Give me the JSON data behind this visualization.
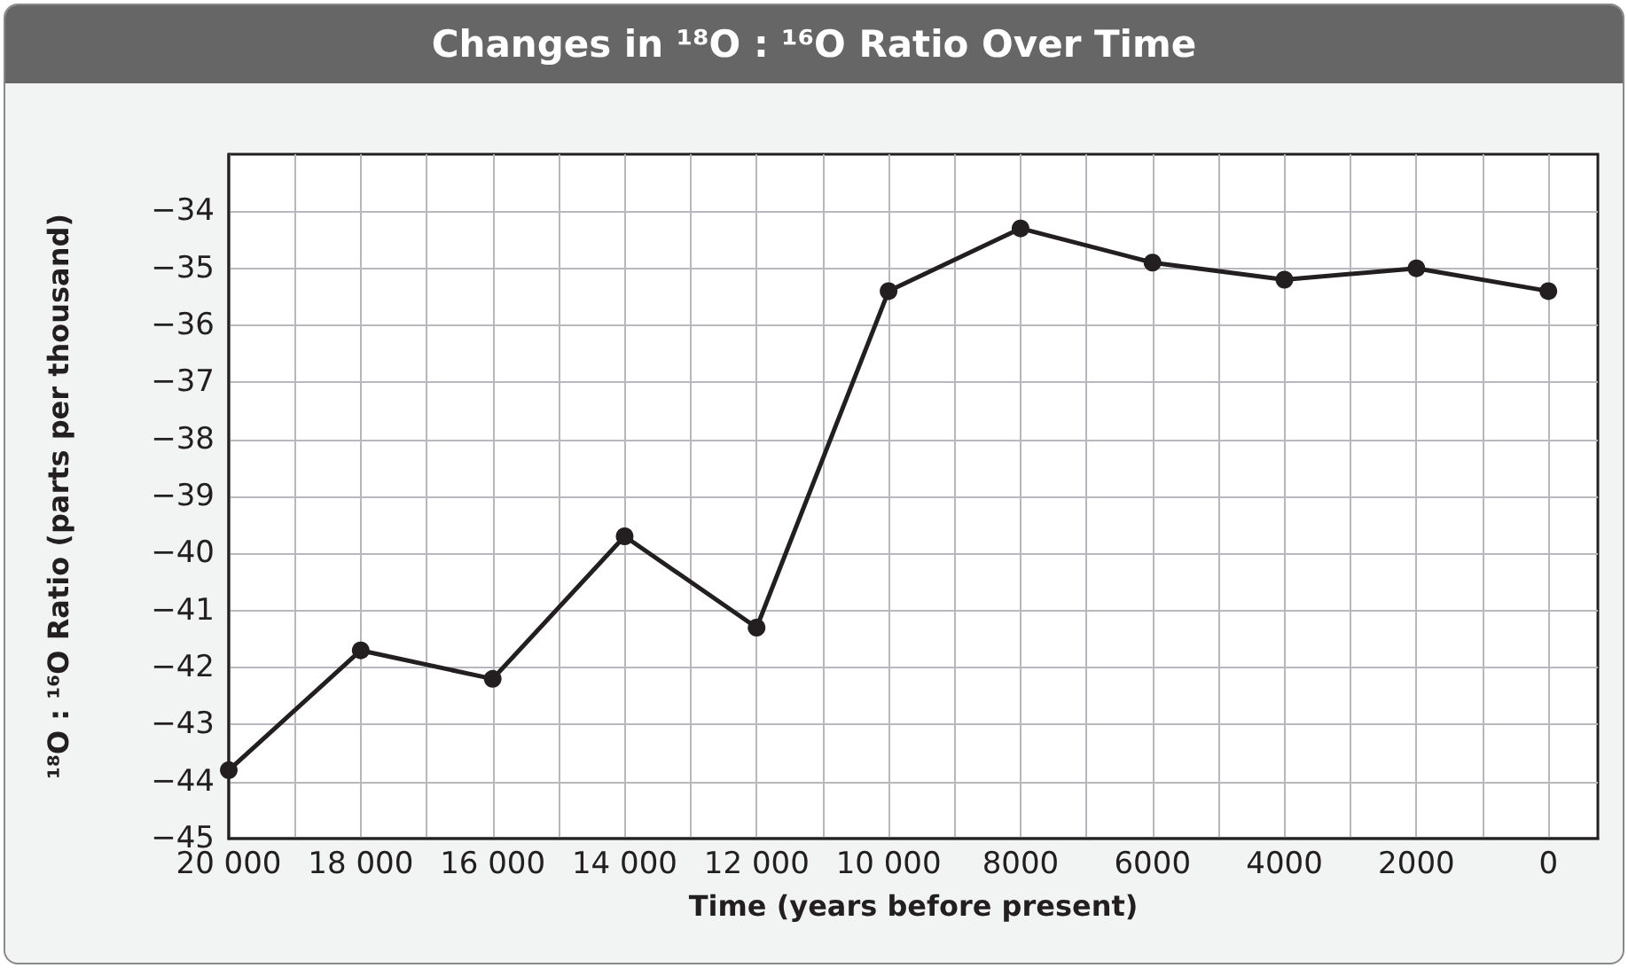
{
  "chart_data": {
    "type": "line",
    "title": "Changes in ¹⁸O : ¹⁶O Ratio Over Time",
    "xlabel": "Time (years before present)",
    "ylabel": "¹⁸O : ¹⁶O Ratio (parts per thousand)",
    "x": [
      20000,
      18000,
      16000,
      14000,
      12000,
      10000,
      8000,
      6000,
      4000,
      2000,
      0
    ],
    "series": [
      {
        "color": "#231f20",
        "values": [
          -43.8,
          -41.7,
          -42.2,
          -39.7,
          -41.3,
          -35.4,
          -34.3,
          -34.9,
          -35.2,
          -35.0,
          -35.4
        ]
      }
    ],
    "xlim": [
      20000,
      -750
    ],
    "xticks": [
      {
        "value": 20000,
        "label": "20 000"
      },
      {
        "value": 19000,
        "label": null
      },
      {
        "value": 18000,
        "label": "18 000"
      },
      {
        "value": 17000,
        "label": null
      },
      {
        "value": 16000,
        "label": "16 000"
      },
      {
        "value": 15000,
        "label": null
      },
      {
        "value": 14000,
        "label": "14 000"
      },
      {
        "value": 13000,
        "label": null
      },
      {
        "value": 12000,
        "label": "12 000"
      },
      {
        "value": 11000,
        "label": null
      },
      {
        "value": 10000,
        "label": "10 000"
      },
      {
        "value": 9000,
        "label": null
      },
      {
        "value": 8000,
        "label": "8000"
      },
      {
        "value": 7000,
        "label": null
      },
      {
        "value": 6000,
        "label": "6000"
      },
      {
        "value": 5000,
        "label": null
      },
      {
        "value": 4000,
        "label": "4000"
      },
      {
        "value": 3000,
        "label": null
      },
      {
        "value": 2000,
        "label": "2000"
      },
      {
        "value": 1000,
        "label": null
      },
      {
        "value": 0,
        "label": "0"
      }
    ],
    "ylim": [
      -45,
      -33
    ],
    "yticks": [
      {
        "value": -45,
        "label": "−45"
      },
      {
        "value": -44,
        "label": "−44"
      },
      {
        "value": -43,
        "label": "−43"
      },
      {
        "value": -42,
        "label": "−42"
      },
      {
        "value": -41,
        "label": "−41"
      },
      {
        "value": -40,
        "label": "−40"
      },
      {
        "value": -39,
        "label": "−39"
      },
      {
        "value": -38,
        "label": "−38"
      },
      {
        "value": -37,
        "label": "−37"
      },
      {
        "value": -36,
        "label": "−36"
      },
      {
        "value": -35,
        "label": "−35"
      },
      {
        "value": -34,
        "label": "−34"
      }
    ],
    "grid": true,
    "marker": "circle",
    "line_style": "solid"
  }
}
